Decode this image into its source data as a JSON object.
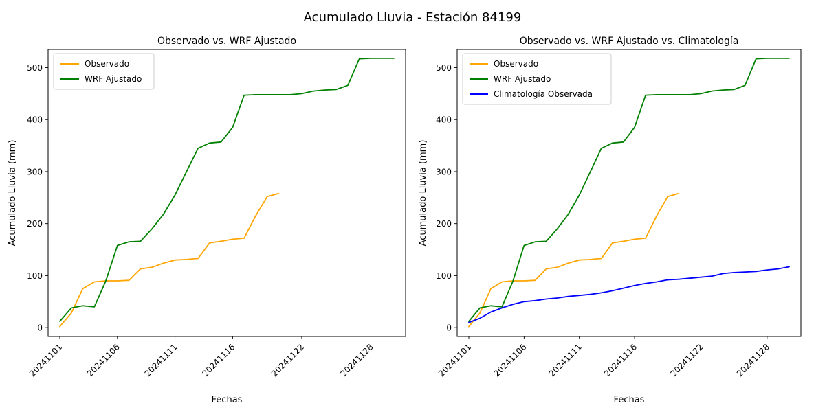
{
  "figure": {
    "suptitle": "Acumulado Lluvia - Estación 84199",
    "background_color": "#ffffff"
  },
  "axis": {
    "xlabel": "Fechas",
    "ylabel": "Acumulado Lluvia (mm)",
    "yticks": [
      0,
      100,
      200,
      300,
      400,
      500
    ],
    "xtick_labels": [
      "20241101",
      "20241106",
      "20241111",
      "20241116",
      "20241122",
      "20241128"
    ],
    "xtick_indices": [
      0,
      5,
      10,
      15,
      21,
      27
    ],
    "ylim": [
      -17,
      535
    ],
    "grid": false
  },
  "chart_data": [
    {
      "type": "line",
      "title": "Observado vs. WRF Ajustado",
      "legend_position": "upper left",
      "x": [
        "20241101",
        "20241102",
        "20241103",
        "20241104",
        "20241105",
        "20241106",
        "20241107",
        "20241108",
        "20241109",
        "20241110",
        "20241111",
        "20241112",
        "20241113",
        "20241114",
        "20241115",
        "20241116",
        "20241117",
        "20241118",
        "20241119",
        "20241120",
        "20241121",
        "20241122",
        "20241123",
        "20241124",
        "20241125",
        "20241126",
        "20241127",
        "20241128",
        "20241129",
        "20241130"
      ],
      "series": [
        {
          "name": "Observado",
          "color": "#ffa500",
          "values": [
            2,
            28,
            75,
            88,
            90,
            90,
            91,
            113,
            116,
            124,
            130,
            131,
            133,
            163,
            166,
            170,
            172,
            215,
            252,
            258,
            null,
            null,
            null,
            null,
            null,
            null,
            null,
            null,
            null,
            null
          ]
        },
        {
          "name": "WRF Ajustado",
          "color": "#008000",
          "values": [
            12,
            38,
            42,
            40,
            90,
            158,
            165,
            166,
            190,
            218,
            255,
            300,
            345,
            355,
            357,
            385,
            447,
            448,
            448,
            448,
            448,
            450,
            455,
            457,
            458,
            466,
            517,
            518,
            518,
            518
          ]
        }
      ]
    },
    {
      "type": "line",
      "title": "Observado vs. WRF Ajustado vs. Climatología",
      "legend_position": "upper left",
      "x": [
        "20241101",
        "20241102",
        "20241103",
        "20241104",
        "20241105",
        "20241106",
        "20241107",
        "20241108",
        "20241109",
        "20241110",
        "20241111",
        "20241112",
        "20241113",
        "20241114",
        "20241115",
        "20241116",
        "20241117",
        "20241118",
        "20241119",
        "20241120",
        "20241121",
        "20241122",
        "20241123",
        "20241124",
        "20241125",
        "20241126",
        "20241127",
        "20241128",
        "20241129",
        "20241130"
      ],
      "series": [
        {
          "name": "Observado",
          "color": "#ffa500",
          "values": [
            2,
            28,
            75,
            88,
            90,
            90,
            91,
            113,
            116,
            124,
            130,
            131,
            133,
            163,
            166,
            170,
            172,
            215,
            252,
            258,
            null,
            null,
            null,
            null,
            null,
            null,
            null,
            null,
            null,
            null
          ]
        },
        {
          "name": "WRF Ajustado",
          "color": "#008000",
          "values": [
            12,
            38,
            42,
            40,
            90,
            158,
            165,
            166,
            190,
            218,
            255,
            300,
            345,
            355,
            357,
            385,
            447,
            448,
            448,
            448,
            448,
            450,
            455,
            457,
            458,
            466,
            517,
            518,
            518,
            518
          ]
        },
        {
          "name": "Climatología Observada",
          "color": "#0000ff",
          "values": [
            10,
            18,
            30,
            38,
            45,
            50,
            52,
            55,
            57,
            60,
            62,
            64,
            67,
            71,
            76,
            81,
            85,
            88,
            92,
            93,
            95,
            97,
            99,
            104,
            106,
            107,
            108,
            111,
            113,
            117
          ]
        }
      ]
    }
  ]
}
